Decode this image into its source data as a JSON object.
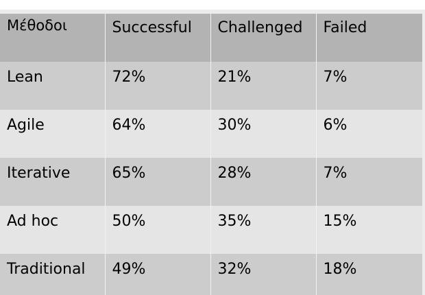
{
  "table": {
    "headers": [
      "Μέθοδοι",
      "Successful",
      "Challenged",
      "Failed"
    ],
    "rows": [
      [
        "Lean",
        "72%",
        "21%",
        "7%"
      ],
      [
        "Agile",
        "64%",
        "30%",
        "6%"
      ],
      [
        "Iterative",
        "65%",
        "28%",
        "7%"
      ],
      [
        "Ad hoc",
        "50%",
        "35%",
        "15%"
      ],
      [
        "Traditional",
        "49%",
        "32%",
        "18%"
      ]
    ]
  },
  "colors": {
    "header_bg": "#b3b3b3",
    "row_dark_bg": "#cccccc",
    "row_light_bg": "#e5e5e5"
  }
}
